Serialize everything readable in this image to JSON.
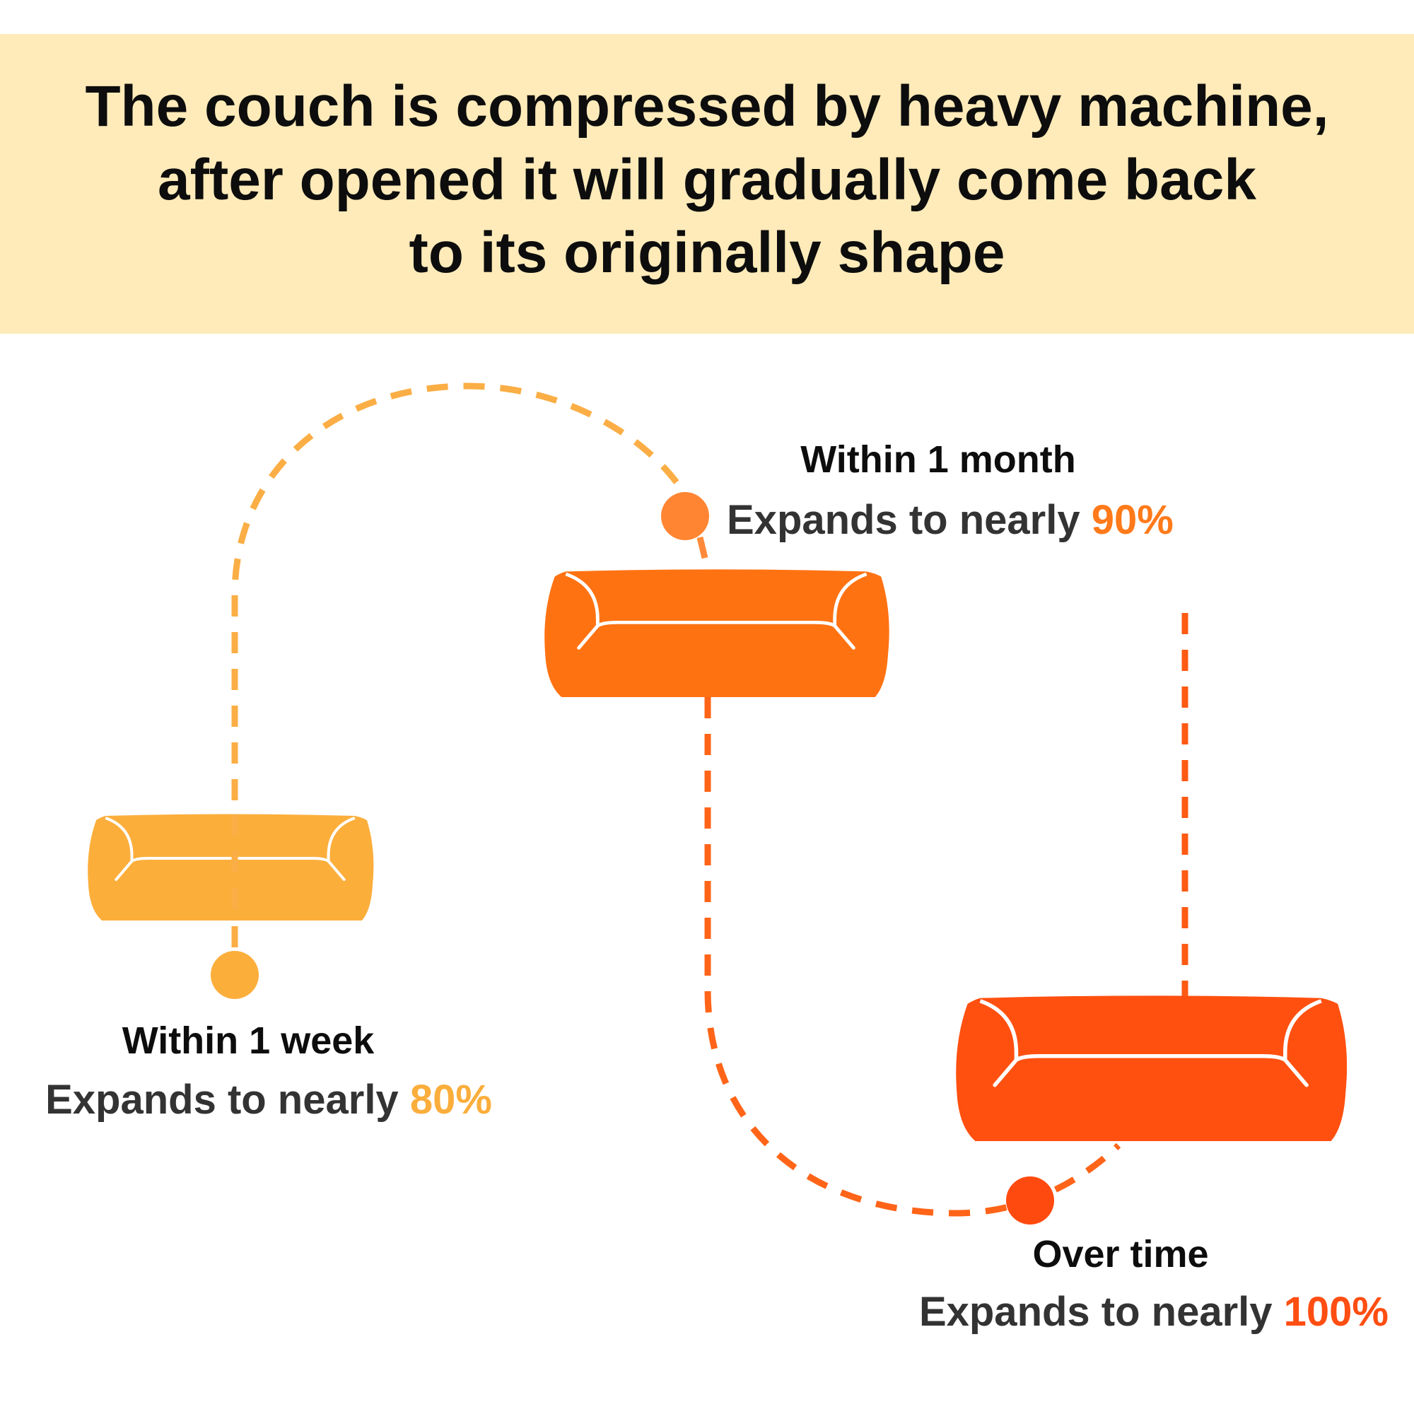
{
  "title": {
    "lines": [
      "The couch is compressed by heavy machine,",
      "after opened it will gradually come back",
      "to its originally shape"
    ]
  },
  "colors": {
    "banner": "#FEEBB9",
    "stage1": "#FCAE3B",
    "stage2": "#FF7212",
    "stage3": "#FF5010"
  },
  "stages": [
    {
      "heading": "Within 1 week",
      "text": "Expands to nearly ",
      "percent": "80%"
    },
    {
      "heading": "Within 1 month",
      "text": "Expands to nearly ",
      "percent": "90%"
    },
    {
      "heading": "Over time",
      "text": "Expands to nearly ",
      "percent": "100%"
    }
  ],
  "icons": [
    "sofa-icon",
    "timeline-dot-icon"
  ]
}
